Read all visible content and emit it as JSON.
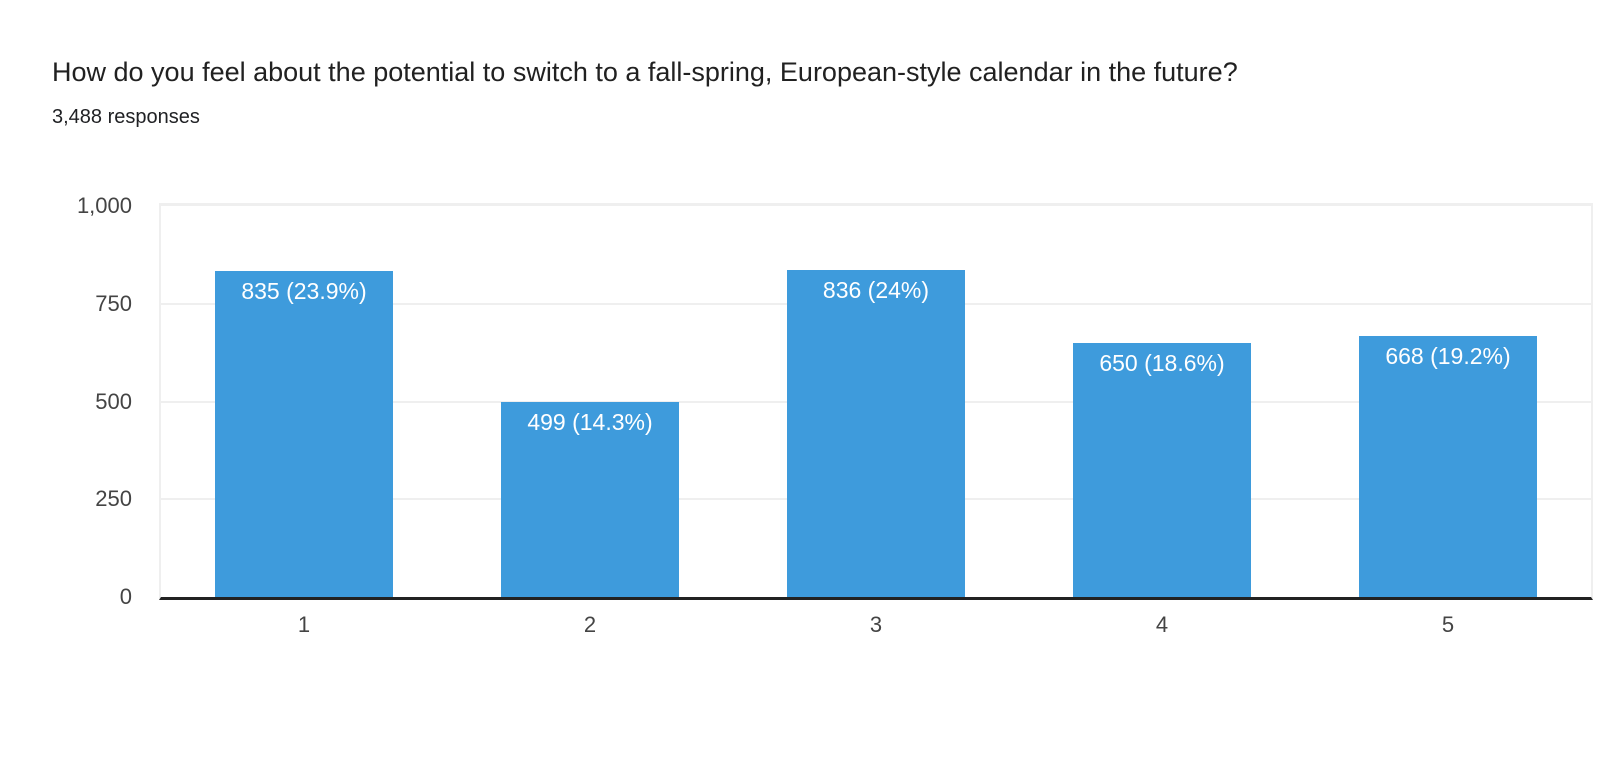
{
  "colors": {
    "bar": "#3e9bdc",
    "bar_label_text": "#ffffff",
    "axis_text": "#444444",
    "grid": "#efefef",
    "baseline": "#222222",
    "title_text": "#212121",
    "subtitle_text": "#202124"
  },
  "chart_data": {
    "type": "bar",
    "title": "How do you feel about the potential to switch to a fall-spring, European-style calendar in the future?",
    "subtitle": "3,488 responses",
    "categories": [
      "1",
      "2",
      "3",
      "4",
      "5"
    ],
    "values": [
      835,
      499,
      836,
      650,
      668
    ],
    "bar_labels": [
      "835 (23.9%)",
      "499 (14.3%)",
      "836 (24%)",
      "650 (18.6%)",
      "668 (19.2%)"
    ],
    "percentages": [
      23.9,
      14.3,
      24,
      18.6,
      19.2
    ],
    "xlabel": "",
    "ylabel": "",
    "ylim": [
      0,
      1000
    ],
    "yticks": [
      0,
      250,
      500,
      750,
      1000
    ],
    "ytick_labels": [
      "0",
      "250",
      "500",
      "750",
      "1,000"
    ],
    "grid": true,
    "legend": "none"
  }
}
